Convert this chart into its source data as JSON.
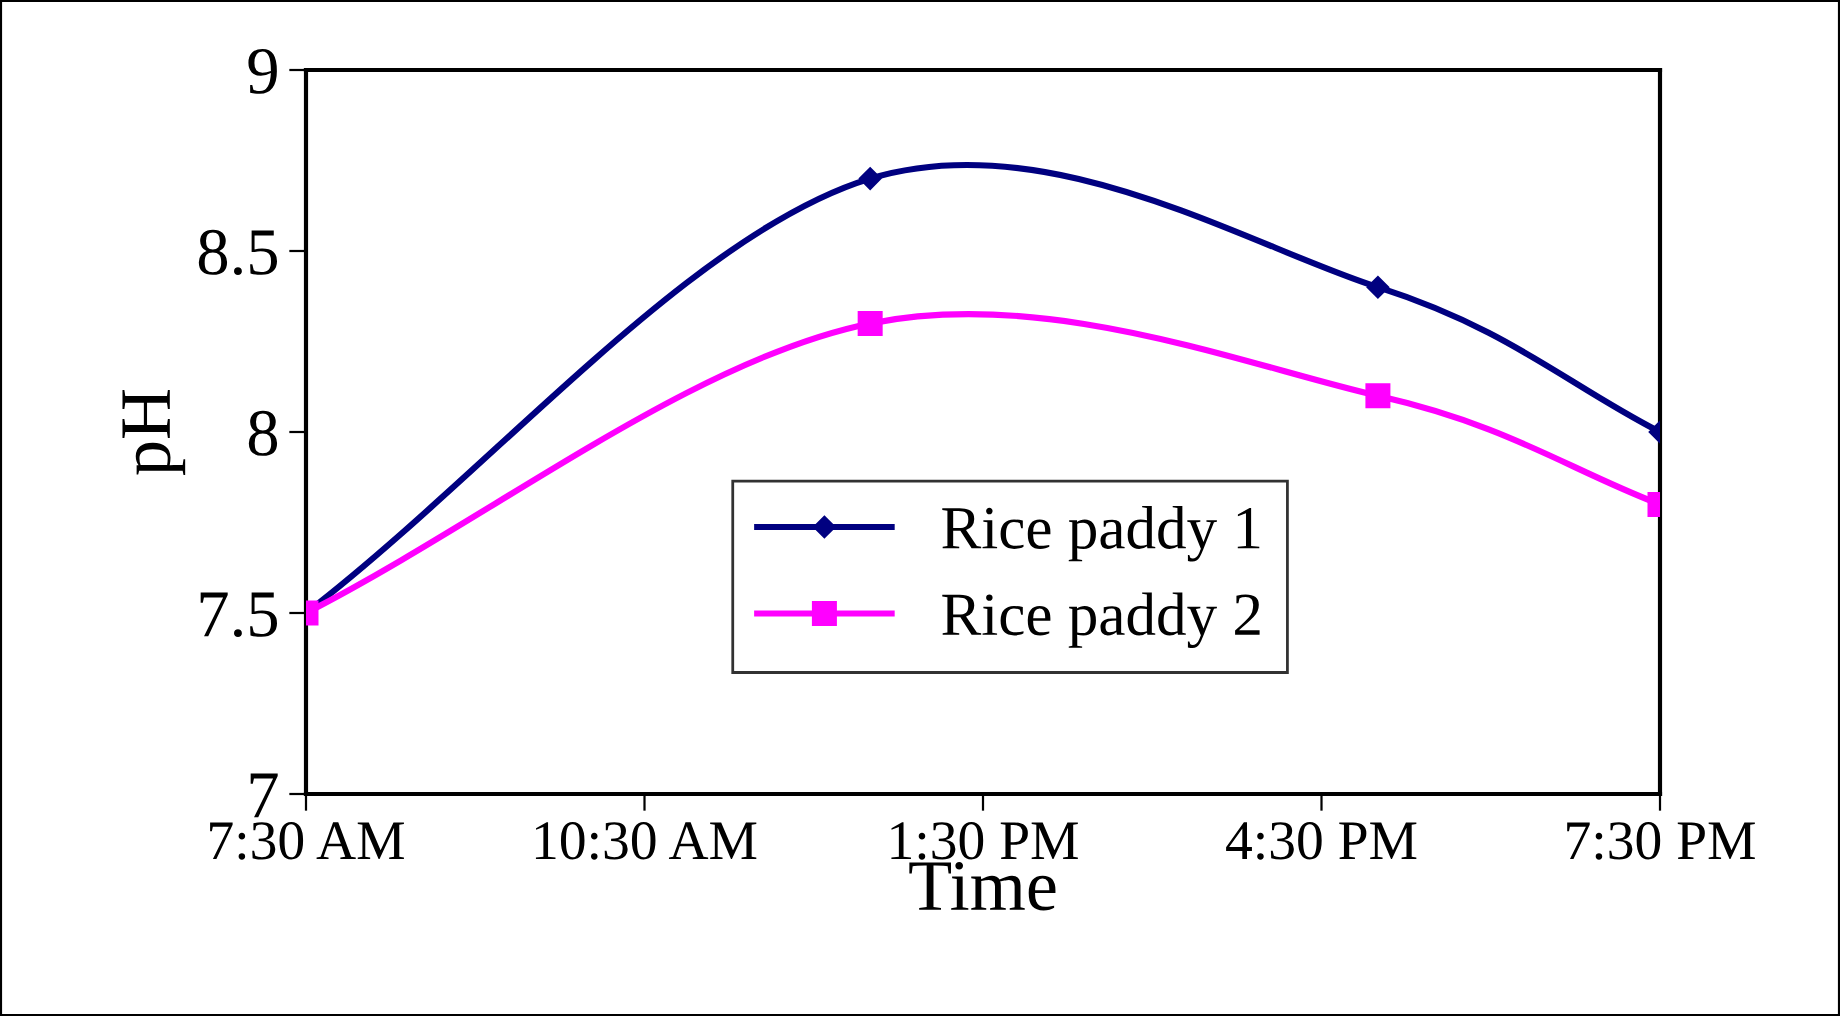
{
  "chart_data": {
    "type": "line",
    "xlabel": "Time",
    "ylabel": "pH",
    "x": [
      7.5,
      12.5,
      17,
      19.5
    ],
    "series": [
      {
        "name": "Rice paddy 1",
        "color": "#000080",
        "values": [
          7.5,
          8.7,
          8.4,
          8.0
        ],
        "marker": "diamond"
      },
      {
        "name": "Rice paddy 2",
        "color": "#ff00ff",
        "values": [
          7.5,
          8.3,
          8.1,
          7.8
        ],
        "marker": "square"
      }
    ],
    "xlim": [
      7.5,
      19.5
    ],
    "xticks": [
      {
        "value": 7.5,
        "label": "7:30 AM"
      },
      {
        "value": 10.5,
        "label": "10:30 AM"
      },
      {
        "value": 13.5,
        "label": "1:30 PM"
      },
      {
        "value": 16.5,
        "label": "4:30 PM"
      },
      {
        "value": 19.5,
        "label": "7:30 PM"
      }
    ],
    "ylim": [
      7,
      9
    ],
    "yticks": [
      7,
      7.5,
      8,
      8.5,
      9
    ],
    "grid": false,
    "legend": "center",
    "line_style": "solid"
  }
}
